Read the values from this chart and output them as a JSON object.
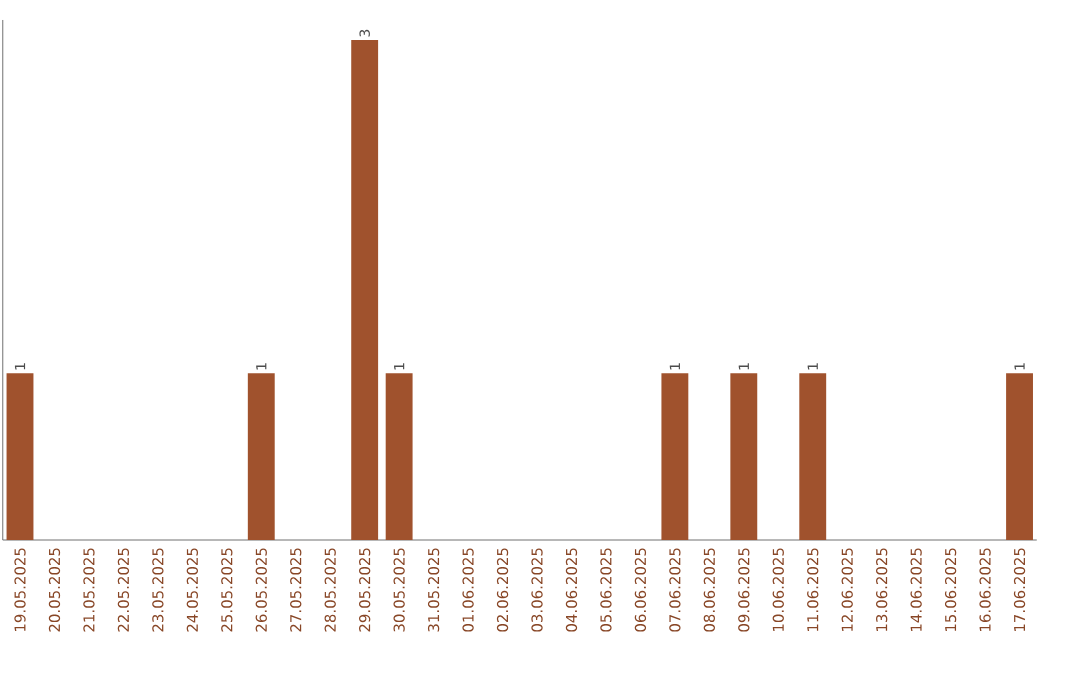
{
  "chart_data": {
    "type": "bar",
    "categories": [
      "19.05.2025",
      "20.05.2025",
      "21.05.2025",
      "22.05.2025",
      "23.05.2025",
      "24.05.2025",
      "25.05.2025",
      "26.05.2025",
      "27.05.2025",
      "28.05.2025",
      "29.05.2025",
      "30.05.2025",
      "31.05.2025",
      "01.06.2025",
      "02.06.2025",
      "03.06.2025",
      "04.06.2025",
      "05.06.2025",
      "06.06.2025",
      "07.06.2025",
      "08.06.2025",
      "09.06.2025",
      "10.06.2025",
      "11.06.2025",
      "12.06.2025",
      "13.06.2025",
      "14.06.2025",
      "15.06.2025",
      "16.06.2025",
      "17.06.2025"
    ],
    "values": [
      1,
      0,
      0,
      0,
      0,
      0,
      0,
      1,
      0,
      0,
      3,
      1,
      0,
      0,
      0,
      0,
      0,
      0,
      0,
      1,
      0,
      1,
      0,
      1,
      0,
      0,
      0,
      0,
      0,
      1
    ],
    "value_labels": [
      "1",
      null,
      null,
      null,
      null,
      null,
      null,
      "1",
      null,
      null,
      "3",
      "1",
      null,
      null,
      null,
      null,
      null,
      null,
      null,
      "1",
      null,
      "1",
      null,
      "1",
      null,
      null,
      null,
      null,
      null,
      "1"
    ],
    "color": "#a0522d",
    "grid": false,
    "tick_labels": "x"
  }
}
